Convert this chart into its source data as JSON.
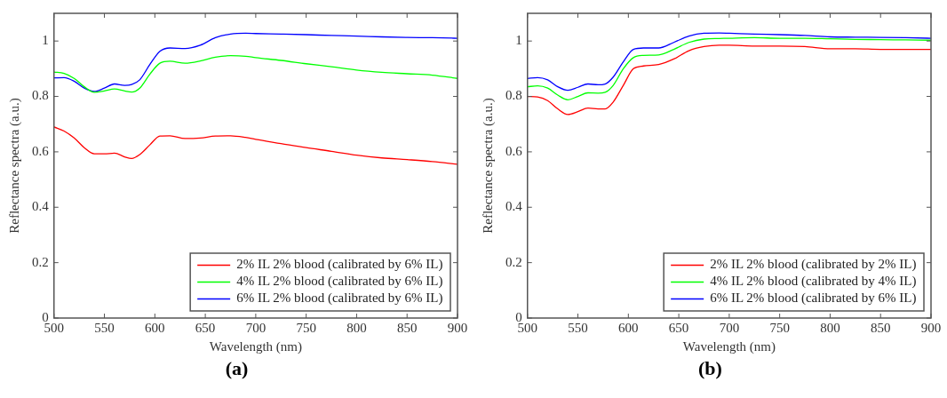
{
  "chart_data": [
    {
      "type": "line",
      "xlabel": "Wavelength (nm)",
      "ylabel": "Reflectance spectra (a.u.)",
      "annotations": [
        "(a)"
      ],
      "xlim": [
        500,
        900
      ],
      "xticks": [
        500,
        550,
        600,
        650,
        700,
        750,
        800,
        850,
        900
      ],
      "ylim": [
        0,
        1.1
      ],
      "yticks": [
        0,
        0.2,
        0.4,
        0.6,
        0.8,
        1
      ],
      "grid": false,
      "legend": "bottom right",
      "marker": "none",
      "line_style": "solid",
      "x": [
        500,
        510,
        520,
        530,
        540,
        550,
        560,
        570,
        577,
        585,
        595,
        605,
        615,
        630,
        645,
        660,
        675,
        690,
        700,
        725,
        750,
        775,
        800,
        825,
        850,
        875,
        900
      ],
      "series": [
        {
          "name": "2% IL 2% blood (calibrated by 6% IL)",
          "color": "#ff0000",
          "values": [
            0.69,
            0.675,
            0.65,
            0.615,
            0.593,
            0.593,
            0.595,
            0.582,
            0.576,
            0.59,
            0.625,
            0.657,
            0.658,
            0.648,
            0.65,
            0.657,
            0.658,
            0.652,
            0.645,
            0.63,
            0.615,
            0.602,
            0.588,
            0.578,
            0.572,
            0.565,
            0.555
          ]
        },
        {
          "name": "4% IL 2% blood (calibrated by 6% IL)",
          "color": "#00ff00",
          "values": [
            0.888,
            0.883,
            0.865,
            0.835,
            0.815,
            0.82,
            0.827,
            0.82,
            0.816,
            0.83,
            0.88,
            0.92,
            0.927,
            0.92,
            0.928,
            0.942,
            0.947,
            0.945,
            0.94,
            0.93,
            0.918,
            0.907,
            0.895,
            0.887,
            0.882,
            0.877,
            0.865
          ]
        },
        {
          "name": "6% IL 2% blood (calibrated by 6% IL)",
          "color": "#0000ff",
          "values": [
            0.867,
            0.868,
            0.855,
            0.83,
            0.818,
            0.83,
            0.845,
            0.84,
            0.843,
            0.86,
            0.915,
            0.963,
            0.975,
            0.973,
            0.985,
            1.012,
            1.025,
            1.028,
            1.027,
            1.025,
            1.023,
            1.02,
            1.018,
            1.015,
            1.013,
            1.012,
            1.01
          ]
        }
      ]
    },
    {
      "type": "line",
      "xlabel": "Wavelength (nm)",
      "ylabel": "Reflectance spectra (a.u.)",
      "annotations": [
        "(b)"
      ],
      "xlim": [
        500,
        900
      ],
      "xticks": [
        500,
        550,
        600,
        650,
        700,
        750,
        800,
        850,
        900
      ],
      "ylim": [
        0,
        1.1
      ],
      "yticks": [
        0,
        0.2,
        0.4,
        0.6,
        0.8,
        1
      ],
      "grid": false,
      "legend": "bottom right",
      "marker": "none",
      "line_style": "solid",
      "x": [
        500,
        510,
        520,
        530,
        540,
        550,
        560,
        570,
        577,
        585,
        595,
        605,
        615,
        630,
        645,
        660,
        675,
        690,
        700,
        725,
        750,
        775,
        800,
        825,
        850,
        875,
        900
      ],
      "series": [
        {
          "name": "2% IL 2% blood (calibrated by 2% IL)",
          "color": "#ff0000",
          "values": [
            0.8,
            0.798,
            0.785,
            0.755,
            0.735,
            0.745,
            0.758,
            0.755,
            0.755,
            0.78,
            0.84,
            0.9,
            0.91,
            0.915,
            0.935,
            0.965,
            0.98,
            0.985,
            0.985,
            0.982,
            0.982,
            0.98,
            0.972,
            0.972,
            0.97,
            0.97,
            0.97
          ]
        },
        {
          "name": "4% IL 2% blood (calibrated by 4% IL)",
          "color": "#00ff00",
          "values": [
            0.835,
            0.838,
            0.83,
            0.805,
            0.788,
            0.8,
            0.813,
            0.812,
            0.815,
            0.84,
            0.9,
            0.94,
            0.948,
            0.95,
            0.97,
            0.995,
            1.007,
            1.009,
            1.01,
            1.012,
            1.01,
            1.01,
            1.008,
            1.006,
            1.005,
            1.004,
            1.003
          ]
        },
        {
          "name": "6% IL 2% blood (calibrated by 6% IL)",
          "color": "#0000ff",
          "values": [
            0.865,
            0.868,
            0.86,
            0.835,
            0.822,
            0.833,
            0.845,
            0.842,
            0.845,
            0.87,
            0.925,
            0.97,
            0.975,
            0.975,
            0.995,
            1.018,
            1.028,
            1.029,
            1.028,
            1.025,
            1.023,
            1.02,
            1.015,
            1.014,
            1.013,
            1.012,
            1.01
          ]
        }
      ]
    }
  ]
}
